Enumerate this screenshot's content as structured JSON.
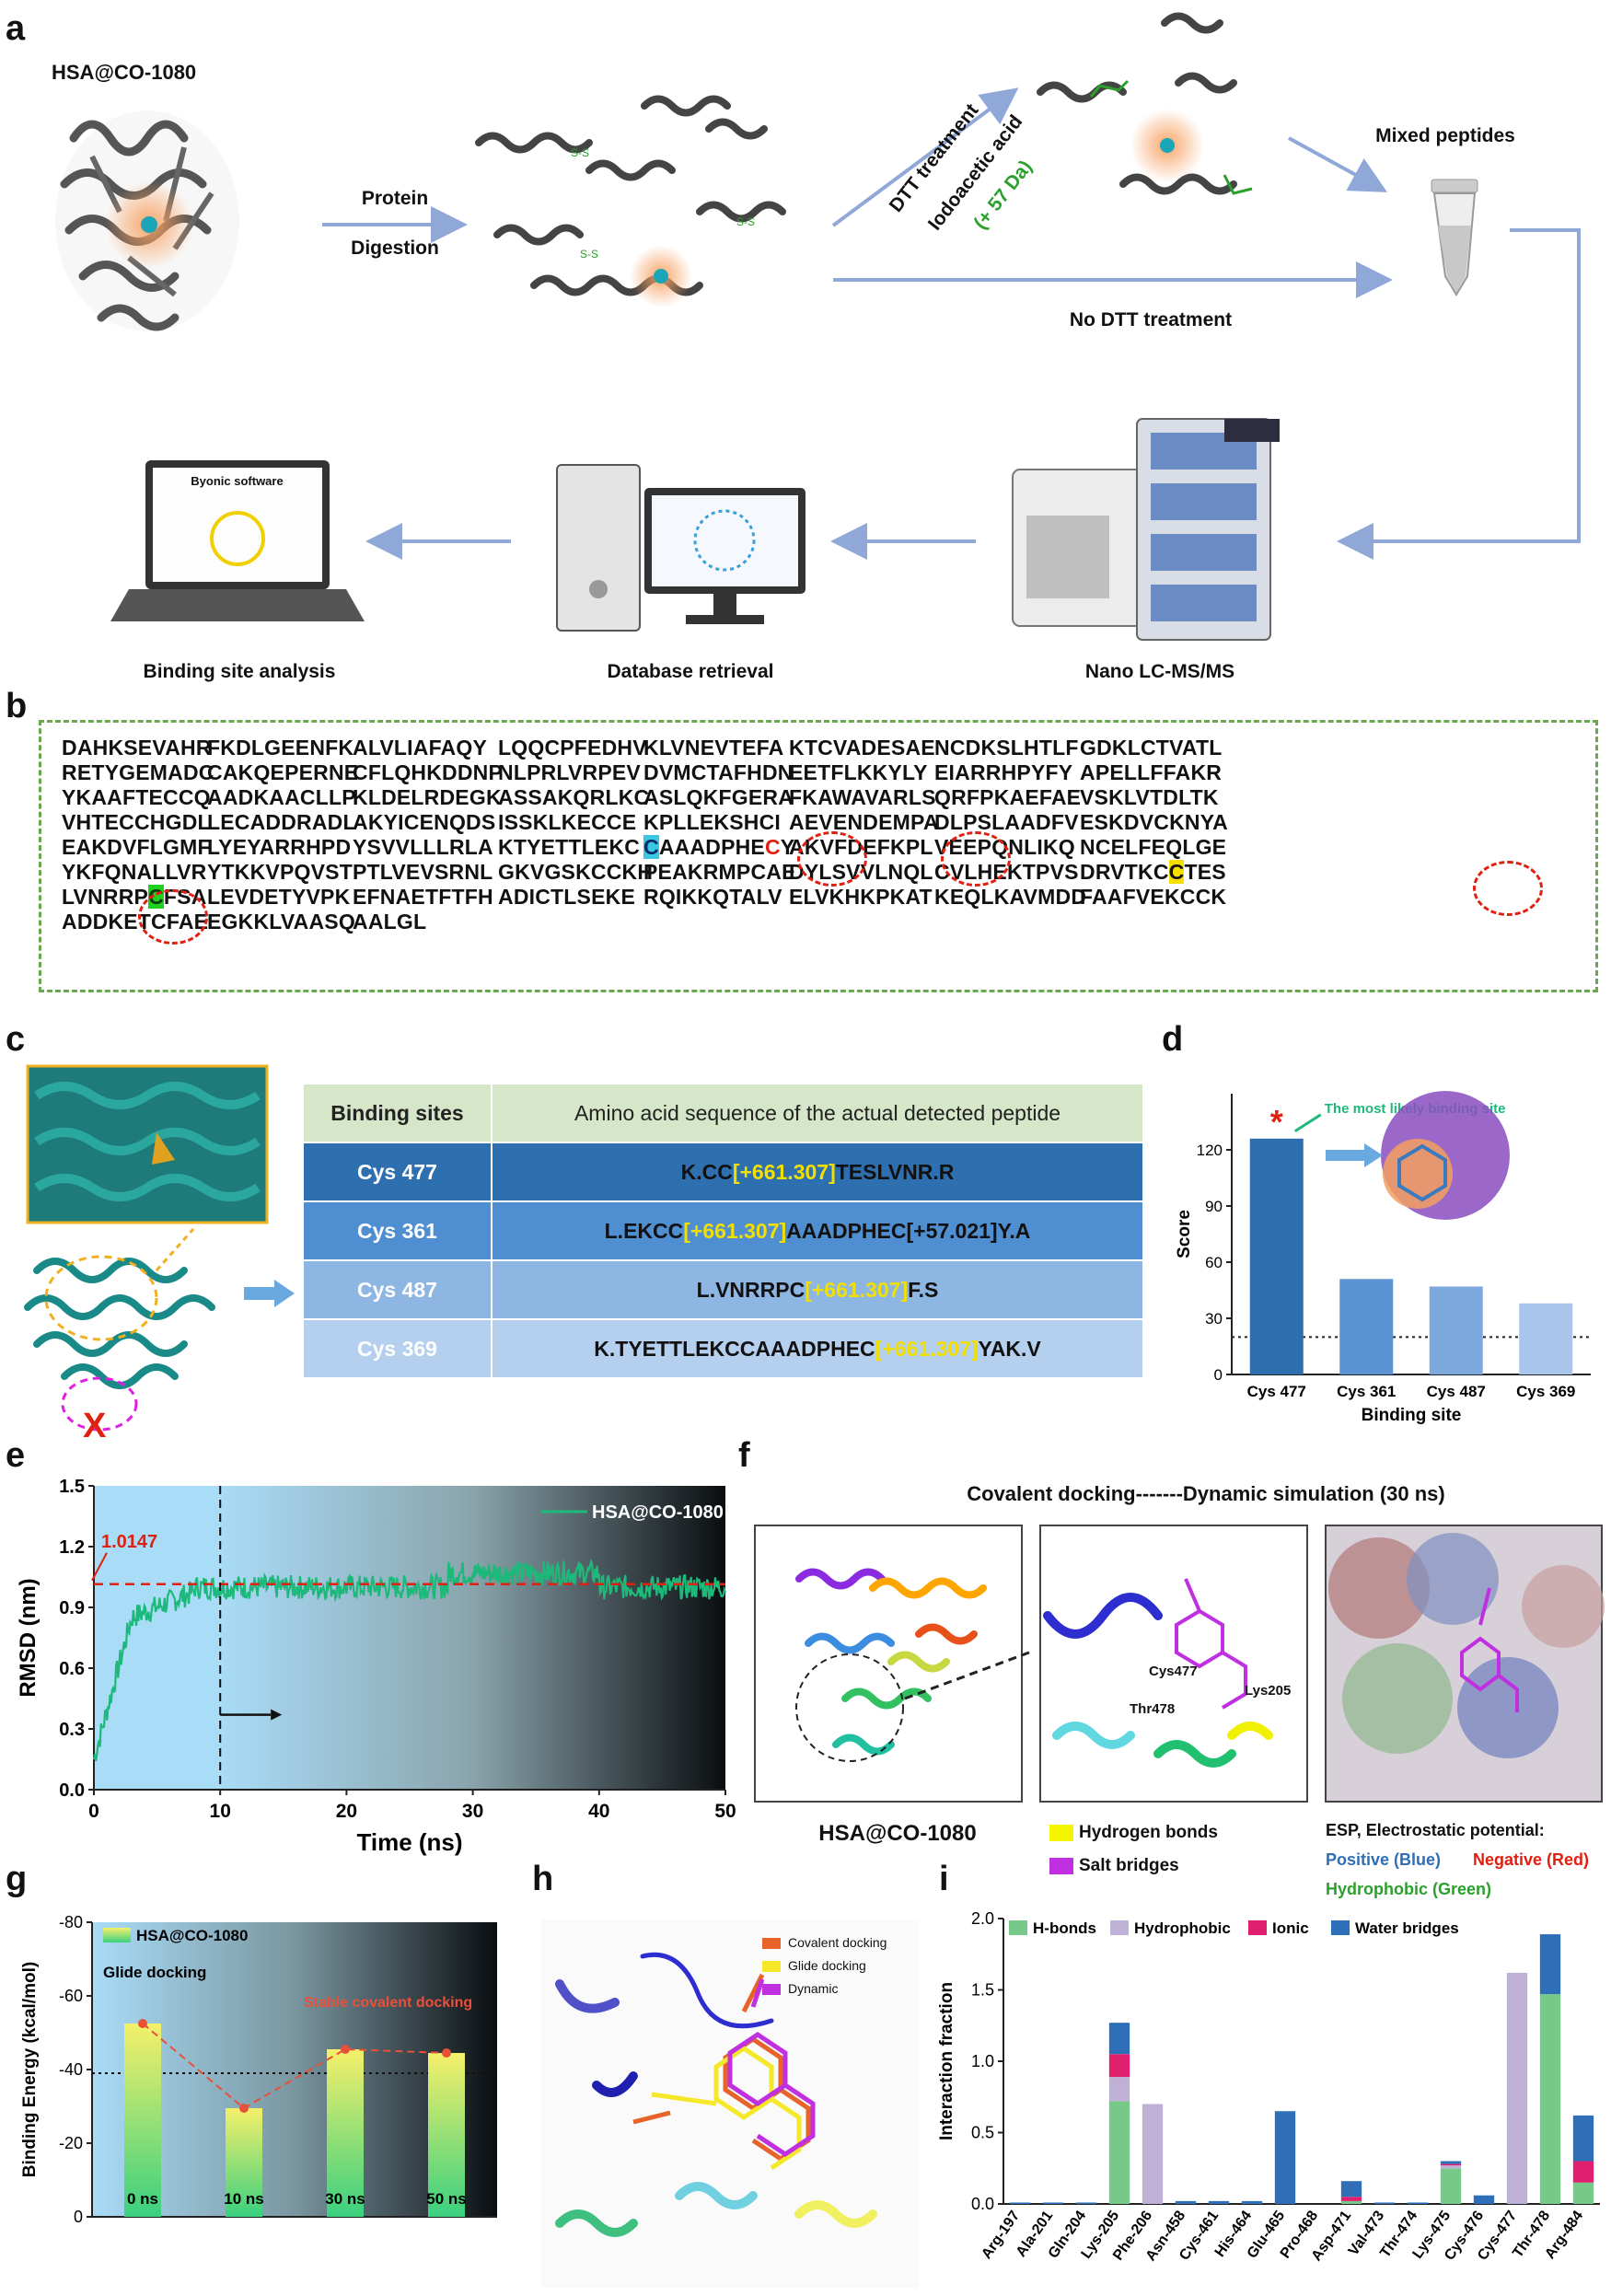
{
  "panels": {
    "a": "a",
    "b": "b",
    "c": "c",
    "d": "d",
    "e": "e",
    "f": "f",
    "g": "g",
    "h": "h",
    "i": "i"
  },
  "panel_a": {
    "conjugate_label": "HSA@CO-1080",
    "protein_label": "Protein",
    "digestion_label": "Digestion",
    "dtt_label": "DTT treatment",
    "iodo_label": "Iodoacetic acid",
    "mass_shift_label": "(+ 57 Da)",
    "no_dtt_label": "No DTT treatment",
    "mixed_label": "Mixed peptides",
    "screen_title": "Byonic software",
    "steps": [
      "Binding site analysis",
      "Database retrieval",
      "Nano LC-MS/MS"
    ],
    "colors": {
      "arrow": "#8fa8d8",
      "protein": "#555555",
      "glow": "#f7a060",
      "thiol": "#2ca02c"
    }
  },
  "panel_b": {
    "protein_name": "HSA",
    "rows": [
      [
        "DAHKSEVAHR",
        "FKDLGEENFK",
        "ALVLIAFAQY",
        "LQQCPFEDHV",
        "KLVNEVTEFA",
        "KTCVADESAE",
        "NCDKSLHTLF",
        "GDKLCTVATL"
      ],
      [
        "RETYGEMADC",
        "CAKQEPERNE",
        "CFLQHKDDNP",
        "NLPRLVRPEV",
        "DVMCTAFHDN",
        "EETFLKKYLY",
        "EIARRHPYFY",
        "APELLFFAKR"
      ],
      [
        "YKAAFTECCQ",
        "AADKAACLLP",
        "KLDELRDEGK",
        "ASSAKQRLKC",
        "ASLQKFGERA",
        "FKAWAVARLS",
        "QRFPKAEFAE",
        "VSKLVTDLTK"
      ],
      [
        "VHTECCHGDL",
        "LECADDRADL",
        "AKYICENQDS",
        "ISSKLKECCE",
        "KPLLEKSHCI",
        "AEVENDEMPA",
        "DLPSLAADFV",
        "ESKDVCKNYA"
      ],
      [
        "EAKDVFLGMF",
        "LYEYARRHPD",
        "YSVVLLLRLA",
        "KTYETTLEKC",
        "CAAADPHECY",
        "AKVFDEFKPL",
        "VEEPQNLIKQ",
        "NCELFEQLGE"
      ],
      [
        "YKFQNALLVR",
        "YTKKVPQVST",
        "PTLVEVSRNL",
        "GKVGSKCCKH",
        "PEAKRMPCAE",
        "DYLSVVLNQL",
        "CVLHEKTPVS",
        "DRVTKCCTES"
      ],
      [
        "LVNRRPCFSA",
        "LEVDETYVPK",
        "EFNAETFTFH",
        "ADICTLSEKE",
        "RQIKKQTALV",
        "ELVKHKPKAT",
        "KEQLKAVMDD",
        "FAAFVEKCCK"
      ],
      [
        "ADDKETCFAE",
        "EGKKLVAASQ",
        "AALGL",
        "",
        "",
        "",
        "",
        ""
      ]
    ]
  },
  "panel_c": {
    "headers": [
      "Binding sites",
      "Amino acid sequence of the actual detected peptide"
    ],
    "rows": [
      {
        "site": "Cys 477",
        "pre": "K.CC",
        "mod": "[+661.307]",
        "post": "TESLVNR.R",
        "color": "#2e6fb0"
      },
      {
        "site": "Cys 361",
        "pre": "L.EKCC",
        "mod": "[+661.307]",
        "post": "AAADPHEC[+57.021]Y.A",
        "color": "#4f8ed0"
      },
      {
        "site": "Cys 487",
        "pre": "L.VNRRPC",
        "mod": "[+661.307]",
        "post": "F.S",
        "color": "#8db6e2"
      },
      {
        "site": "Cys 369",
        "pre": "K.TYETTLEKCCAAADPHEC",
        "mod": "[+661.307]",
        "post": "YAK.V",
        "color": "#b5cfee"
      }
    ],
    "cross_mark": "X"
  },
  "chart_d": {
    "type": "bar",
    "categories": [
      "Cys 477",
      "Cys 361",
      "Cys 487",
      "Cys 369"
    ],
    "values": [
      126,
      51,
      47,
      38
    ],
    "colors": [
      "#2e6fb0",
      "#5b92d2",
      "#7ea9de",
      "#a9c5ec"
    ],
    "ylabel": "Score",
    "xlabel": "Binding site",
    "ylim": [
      0,
      150
    ],
    "yticks": [
      0,
      30,
      60,
      90,
      120
    ],
    "threshold": 20,
    "annotation": "The most likely binding site",
    "star": "*"
  },
  "chart_e": {
    "type": "line",
    "series_name": "HSA@CO-1080",
    "xlabel": "Time (ns)",
    "ylabel": "RMSD (nm)",
    "xlim": [
      0,
      50
    ],
    "ylim": [
      0,
      1.5
    ],
    "xticks": [
      0,
      10,
      20,
      30,
      40,
      50
    ],
    "yticks": [
      0.0,
      0.3,
      0.6,
      0.9,
      1.2,
      1.5
    ],
    "reference_value": 1.0147,
    "reference_label": "1.0147",
    "marker_x": 10,
    "line_color": "#1db97a"
  },
  "panel_f": {
    "title": "Covalent docking-------Dynamic simulation (30 ns)",
    "conjugate_label": "HSA@CO-1080",
    "residues": [
      "Cys477",
      "Lys205",
      "Thr478"
    ],
    "legend": [
      "Hydrogen bonds",
      "Salt bridges"
    ],
    "legend_colors": [
      "#f5f500",
      "#c030e0"
    ],
    "esp_title": "ESP, Electrostatic potential:",
    "esp_positive": "Positive (Blue)",
    "esp_negative": "Negative (Red)",
    "esp_hydrophobic": "Hydrophobic (Green)"
  },
  "chart_g": {
    "type": "bar",
    "categories": [
      "0 ns",
      "10 ns",
      "30 ns",
      "50 ns"
    ],
    "values": [
      -52.5,
      -29.5,
      -45.5,
      -44.5
    ],
    "series_name": "HSA@CO-1080",
    "ylabel": "Binding Energy (kcal/mol)",
    "ylim": [
      0,
      -80
    ],
    "yticks": [
      -80,
      -60,
      -40,
      -20,
      0
    ],
    "reference": -39,
    "annotations": [
      "Glide docking",
      "Stable covalent docking"
    ]
  },
  "panel_h": {
    "legend": [
      "Covalent docking",
      "Glide docking",
      "Dynamic"
    ],
    "legend_colors": [
      "#e8632a",
      "#f5e82a",
      "#c030e0"
    ]
  },
  "chart_i": {
    "type": "bar",
    "stacked": true,
    "categories": [
      "Arg-197",
      "Ala-201",
      "Gln-204",
      "Lys-205",
      "Phe-206",
      "Asn-458",
      "Cys-461",
      "His-464",
      "Glu-465",
      "Pro-468",
      "Asp-471",
      "Val-473",
      "Thr-474",
      "Lys-475",
      "Cys-476",
      "Cys-477",
      "Thr-478",
      "Arg-484"
    ],
    "series": [
      {
        "name": "H-bonds",
        "color": "#77c98a",
        "values": [
          0,
          0,
          0,
          0.72,
          0,
          0,
          0,
          0,
          0,
          0,
          0.02,
          0,
          0,
          0.25,
          0,
          0,
          1.47,
          0.15
        ]
      },
      {
        "name": "Hydrophobic",
        "color": "#bfb0d6",
        "values": [
          0,
          0,
          0,
          0.17,
          0.7,
          0,
          0,
          0,
          0,
          0,
          0,
          0,
          0,
          0.02,
          0,
          1.62,
          0,
          0
        ]
      },
      {
        "name": "Ionic",
        "color": "#e0206e",
        "values": [
          0,
          0,
          0,
          0.16,
          0,
          0,
          0,
          0,
          0,
          0,
          0.03,
          0,
          0,
          0.01,
          0,
          0,
          0,
          0.15
        ]
      },
      {
        "name": "Water bridges",
        "color": "#2f6fb8",
        "values": [
          0.01,
          0.01,
          0.01,
          0.22,
          0,
          0.02,
          0.02,
          0.02,
          0.65,
          0,
          0.11,
          0.01,
          0.01,
          0.02,
          0.06,
          0,
          0.42,
          0.32
        ]
      }
    ],
    "ylabel": "Interaction fraction",
    "ylim": [
      0,
      2.0
    ],
    "yticks": [
      0.0,
      0.5,
      1.0,
      1.5,
      2.0
    ]
  }
}
